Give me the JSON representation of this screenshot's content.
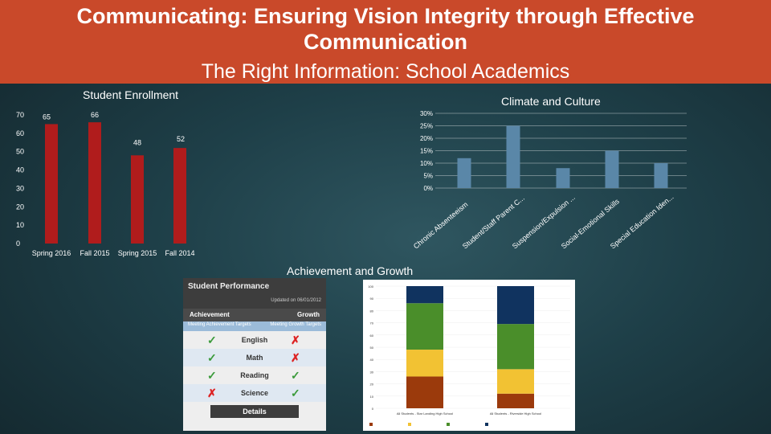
{
  "header": {
    "title_line1": "Communicating:  Ensuring Vision Integrity through Effective",
    "title_line2": "Communication",
    "subtitle": "The Right Information:  School Academics"
  },
  "enrollment": {
    "title": "Student Enrollment",
    "chart_data": {
      "type": "bar",
      "title": "Student Enrollment",
      "categories": [
        "Spring 2016",
        "Fall 2015",
        "Spring 2015",
        "Fall 2014"
      ],
      "values": [
        65,
        66,
        48,
        52
      ],
      "ylim": [
        0,
        70
      ],
      "yticks": [
        0,
        10,
        20,
        30,
        40,
        50,
        60,
        70
      ],
      "color": "#b01c1c"
    }
  },
  "climate": {
    "title": "Climate and Culture",
    "chart_data": {
      "type": "bar",
      "title": "Climate and Culture",
      "categories": [
        "Chronic Absenteeism",
        "Student/Staff Parent C...",
        "Suspension/Expulsion ...",
        "Social-Emotional Skills",
        "Special Education Iden..."
      ],
      "values": [
        12,
        25,
        8,
        15,
        10
      ],
      "ylim": [
        0,
        30
      ],
      "ytick_labels": [
        "0%",
        "5%",
        "10%",
        "15%",
        "20%",
        "25%",
        "30%"
      ],
      "color": "#5a87a8"
    }
  },
  "achievement": {
    "title": "Achievement and Growth",
    "performance": {
      "title": "Student Performance",
      "updated": "Updated on 06/01/2012",
      "col_achievement": "Achievement",
      "col_growth": "Growth",
      "sub_achievement": "Meeting Achievement Targets",
      "sub_growth": "Meeting Growth Targets",
      "details_label": "Details",
      "rows": [
        {
          "subject": "English",
          "achievement": "✓",
          "growth": "✗"
        },
        {
          "subject": "Math",
          "achievement": "✓",
          "growth": "✗"
        },
        {
          "subject": "Reading",
          "achievement": "✓",
          "growth": "✓"
        },
        {
          "subject": "Science",
          "achievement": "✗",
          "growth": "✓"
        }
      ]
    },
    "stacked_chart": {
      "chart_data": {
        "type": "bar",
        "stacked": true,
        "ylim": [
          0,
          100
        ],
        "yticks": [
          0,
          10,
          20,
          30,
          40,
          50,
          60,
          70,
          80,
          90,
          100
        ],
        "categories": [
          "All Students - Star Landing High School",
          "All Students - Riverside High School"
        ],
        "series": [
          {
            "color": "#9b3a0c",
            "values": [
              26,
              12
            ]
          },
          {
            "color": "#f2c233",
            "values": [
              22,
              20
            ]
          },
          {
            "color": "#4a8e2a",
            "values": [
              38,
              37
            ]
          },
          {
            "color": "#10335f",
            "values": [
              14,
              31
            ]
          }
        ]
      }
    }
  }
}
